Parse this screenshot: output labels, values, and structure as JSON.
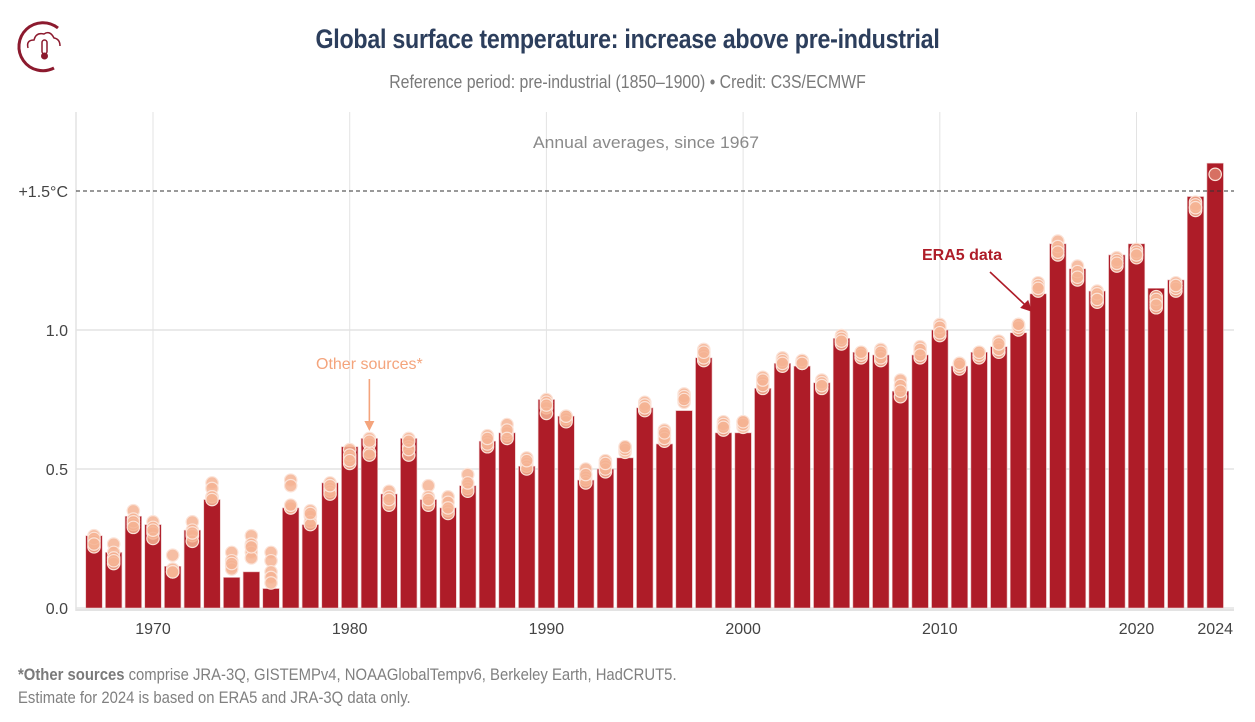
{
  "header": {
    "logo_icon": "cloud-thermometer-icon",
    "title": "Global surface temperature: increase above pre-industrial",
    "subtitle": "Reference period: pre-industrial (1850–1900) • Credit: C3S/ECMWF"
  },
  "footnote": {
    "bold_prefix": "*Other sources",
    "line1_rest": " comprise JRA-3Q, GISTEMPv4, NOAAGlobalTempv6, Berkeley Earth, HadCRUT5.",
    "line2": "Estimate for 2024 is based on ERA5 and JRA-3Q data only."
  },
  "colors": {
    "bar": "#ae1c28",
    "dots": "#f4b393",
    "title": "#2c3e5c",
    "era5_annotation": "#ae1c28",
    "other_annotation": "#f4a47c",
    "threshold_line": "#333333"
  },
  "chart_data": {
    "type": "bar",
    "title": "Annual averages, since 1967",
    "xlabel": "",
    "ylabel": "",
    "ylim": [
      0,
      1.75
    ],
    "yticks": [
      0.0,
      0.5,
      1.0,
      1.5
    ],
    "ytick_labels": [
      "0.0",
      "0.5",
      "1.0",
      "+1.5°C"
    ],
    "xticks": [
      1970,
      1980,
      1990,
      2000,
      2010,
      2020,
      2024
    ],
    "xtick_labels": [
      "1970",
      "1980",
      "1990",
      "2000",
      "2010",
      "2020",
      "2024"
    ],
    "grid": true,
    "reference_line": {
      "value": 1.5,
      "style": "dashed",
      "label": "+1.5°C"
    },
    "annotations": [
      {
        "text": "ERA5 data",
        "target_year": 2015,
        "color": "#ae1c28",
        "bold": true
      },
      {
        "text": "Other sources*",
        "target_year": 1981,
        "color": "#f4a47c",
        "bold": false
      }
    ],
    "categories": [
      1967,
      1968,
      1969,
      1970,
      1971,
      1972,
      1973,
      1974,
      1975,
      1976,
      1977,
      1978,
      1979,
      1980,
      1981,
      1982,
      1983,
      1984,
      1985,
      1986,
      1987,
      1988,
      1989,
      1990,
      1991,
      1992,
      1993,
      1994,
      1995,
      1996,
      1997,
      1998,
      1999,
      2000,
      2001,
      2002,
      2003,
      2004,
      2005,
      2006,
      2007,
      2008,
      2009,
      2010,
      2011,
      2012,
      2013,
      2014,
      2015,
      2016,
      2017,
      2018,
      2019,
      2020,
      2021,
      2022,
      2023,
      2024
    ],
    "series": [
      {
        "name": "ERA5",
        "kind": "bar",
        "values": [
          0.26,
          0.2,
          0.33,
          0.3,
          0.15,
          0.28,
          0.39,
          0.11,
          0.13,
          0.07,
          0.36,
          0.3,
          0.45,
          0.58,
          0.61,
          0.41,
          0.61,
          0.39,
          0.36,
          0.44,
          0.6,
          0.63,
          0.51,
          0.75,
          0.69,
          0.46,
          0.5,
          0.54,
          0.72,
          0.59,
          0.71,
          0.9,
          0.63,
          0.63,
          0.79,
          0.88,
          0.87,
          0.81,
          0.97,
          0.92,
          0.91,
          0.78,
          0.91,
          1.0,
          0.87,
          0.92,
          0.94,
          0.99,
          1.13,
          1.31,
          1.22,
          1.14,
          1.27,
          1.31,
          1.15,
          1.18,
          1.48,
          1.6
        ]
      },
      {
        "name": "Other sources*",
        "kind": "dots",
        "values": [
          [
            0.26,
            0.24,
            0.22,
            0.25,
            0.23
          ],
          [
            0.23,
            0.2,
            0.18,
            0.16,
            0.17
          ],
          [
            0.35,
            0.32,
            0.3,
            0.31,
            0.29
          ],
          [
            0.31,
            0.29,
            0.27,
            0.25,
            0.28
          ],
          [
            0.19,
            0.14,
            0.13,
            0.13,
            0.13
          ],
          [
            0.31,
            0.28,
            0.26,
            0.24,
            0.27
          ],
          [
            0.45,
            0.43,
            0.4,
            0.4,
            0.39
          ],
          [
            0.2,
            0.17,
            0.15,
            0.14,
            0.16
          ],
          [
            0.26,
            0.23,
            0.2,
            0.18,
            0.22
          ],
          [
            0.2,
            0.17,
            0.13,
            0.11,
            0.09
          ],
          [
            0.46,
            0.44,
            0.36,
            0.36,
            0.37
          ],
          [
            0.35,
            0.33,
            0.31,
            0.3,
            0.34
          ],
          [
            0.45,
            0.43,
            0.42,
            0.41,
            0.44
          ],
          [
            0.57,
            0.54,
            0.52,
            0.55,
            0.53
          ],
          [
            0.61,
            0.59,
            0.56,
            0.55,
            0.6
          ],
          [
            0.42,
            0.38,
            0.37,
            0.4,
            0.39
          ],
          [
            0.61,
            0.58,
            0.55,
            0.57,
            0.6
          ],
          [
            0.44,
            0.4,
            0.38,
            0.37,
            0.39
          ],
          [
            0.4,
            0.38,
            0.35,
            0.34,
            0.36
          ],
          [
            0.48,
            0.44,
            0.43,
            0.42,
            0.45
          ],
          [
            0.62,
            0.6,
            0.58,
            0.59,
            0.61
          ],
          [
            0.66,
            0.62,
            0.63,
            0.64,
            0.61
          ],
          [
            0.54,
            0.52,
            0.51,
            0.5,
            0.53
          ],
          [
            0.75,
            0.74,
            0.72,
            0.7,
            0.73
          ],
          [
            0.69,
            0.68,
            0.68,
            0.67,
            0.69
          ],
          [
            0.5,
            0.47,
            0.46,
            0.45,
            0.48
          ],
          [
            0.53,
            0.51,
            0.49,
            0.5,
            0.52
          ],
          [
            0.58,
            0.57,
            0.56,
            0.57,
            0.58
          ],
          [
            0.74,
            0.72,
            0.71,
            0.73,
            0.72
          ],
          [
            0.64,
            0.62,
            0.6,
            0.61,
            0.63
          ],
          [
            0.77,
            0.75,
            0.74,
            0.76,
            0.75
          ],
          [
            0.93,
            0.91,
            0.89,
            0.9,
            0.92
          ],
          [
            0.67,
            0.65,
            0.64,
            0.66,
            0.65
          ],
          [
            0.67,
            0.65,
            0.66,
            0.66,
            0.67
          ],
          [
            0.83,
            0.81,
            0.79,
            0.8,
            0.82
          ],
          [
            0.9,
            0.88,
            0.87,
            0.89,
            0.88
          ],
          [
            0.89,
            0.88,
            0.88,
            0.89,
            0.88
          ],
          [
            0.82,
            0.8,
            0.79,
            0.81,
            0.8
          ],
          [
            0.98,
            0.96,
            0.95,
            0.97,
            0.96
          ],
          [
            0.92,
            0.91,
            0.9,
            0.91,
            0.92
          ],
          [
            0.93,
            0.91,
            0.89,
            0.9,
            0.92
          ],
          [
            0.82,
            0.79,
            0.76,
            0.8,
            0.78
          ],
          [
            0.94,
            0.92,
            0.9,
            0.93,
            0.91
          ],
          [
            1.02,
            1.0,
            0.98,
            1.01,
            0.99
          ],
          [
            0.88,
            0.87,
            0.86,
            0.87,
            0.88
          ],
          [
            0.92,
            0.91,
            0.9,
            0.91,
            0.92
          ],
          [
            0.96,
            0.94,
            0.92,
            0.93,
            0.95
          ],
          [
            1.02,
            1.01,
            1.0,
            1.01,
            1.02
          ],
          [
            1.17,
            1.15,
            1.14,
            1.16,
            1.15
          ],
          [
            1.32,
            1.29,
            1.27,
            1.3,
            1.28
          ],
          [
            1.23,
            1.2,
            1.18,
            1.21,
            1.19
          ],
          [
            1.14,
            1.12,
            1.1,
            1.13,
            1.11
          ],
          [
            1.26,
            1.24,
            1.23,
            1.25,
            1.24
          ],
          [
            1.29,
            1.27,
            1.26,
            1.28,
            1.27
          ],
          [
            1.12,
            1.1,
            1.08,
            1.11,
            1.09
          ],
          [
            1.17,
            1.16,
            1.14,
            1.15,
            1.16
          ],
          [
            1.46,
            1.44,
            1.43,
            1.45,
            1.44
          ],
          [
            1.56
          ]
        ]
      }
    ]
  }
}
